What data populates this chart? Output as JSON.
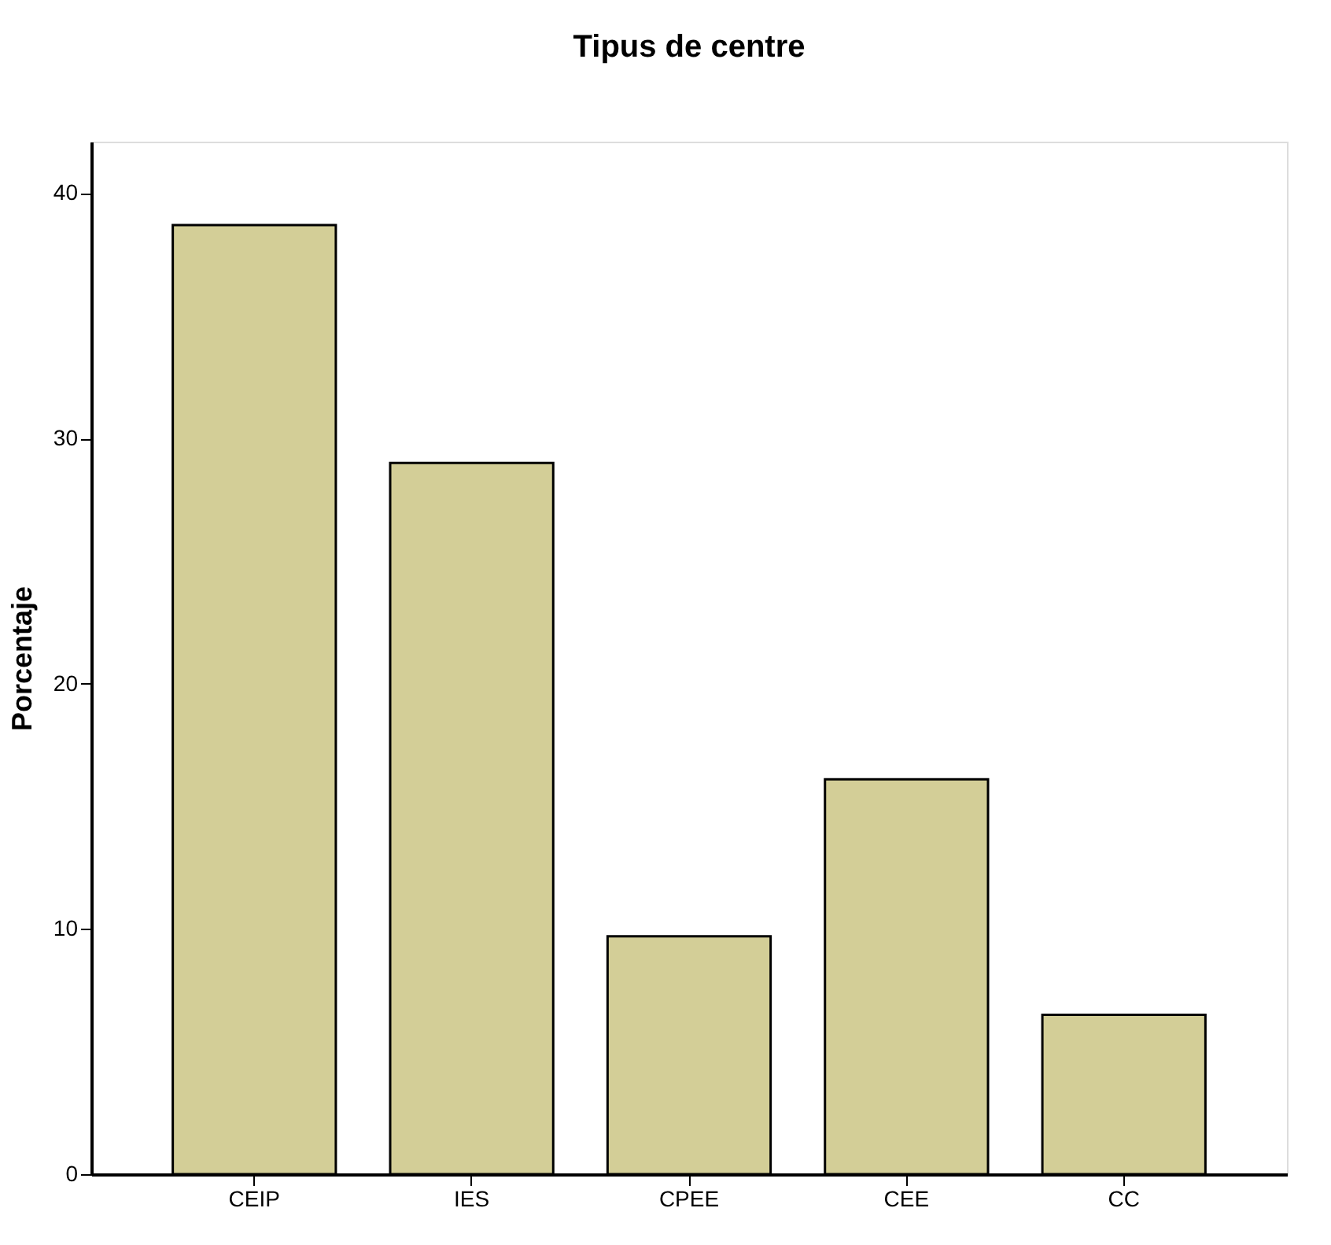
{
  "chart_data": {
    "type": "bar",
    "title": "Tipus de centre",
    "ylabel": "Porcentaje",
    "categories": [
      "CEIP",
      "IES",
      "CPEE",
      "CEE",
      "CC"
    ],
    "values": [
      38.7,
      29.0,
      9.7,
      16.1,
      6.5
    ],
    "color": "#d3ce97",
    "ylim": [
      0,
      42.1
    ],
    "yticks": [
      0,
      10,
      20,
      30,
      40
    ],
    "grid": false
  }
}
